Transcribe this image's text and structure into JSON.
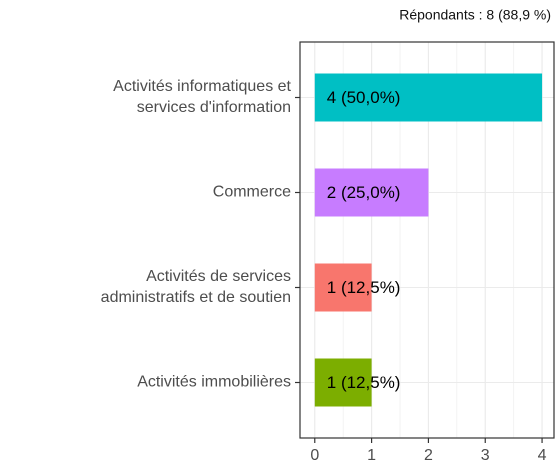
{
  "chart_data": {
    "type": "barh",
    "subtitle": "Répondants : 8 (88,9 %)",
    "categories": [
      [
        "Activités informatiques et",
        "services d'information"
      ],
      [
        "Commerce"
      ],
      [
        "Activités de services",
        "administratifs et de soutien"
      ],
      [
        "Activités immobilières"
      ]
    ],
    "values": [
      4,
      2,
      1,
      1
    ],
    "value_labels": [
      "4 (50,0%)",
      "2 (25,0%)",
      "1 (12,5%)",
      "1 (12,5%)"
    ],
    "colors": [
      "#00bfc4",
      "#c77cff",
      "#f8766d",
      "#7cae00"
    ],
    "xlim": [
      -0.26,
      4.21
    ],
    "xticks": [
      0,
      1,
      2,
      3,
      4
    ],
    "grid": true
  }
}
